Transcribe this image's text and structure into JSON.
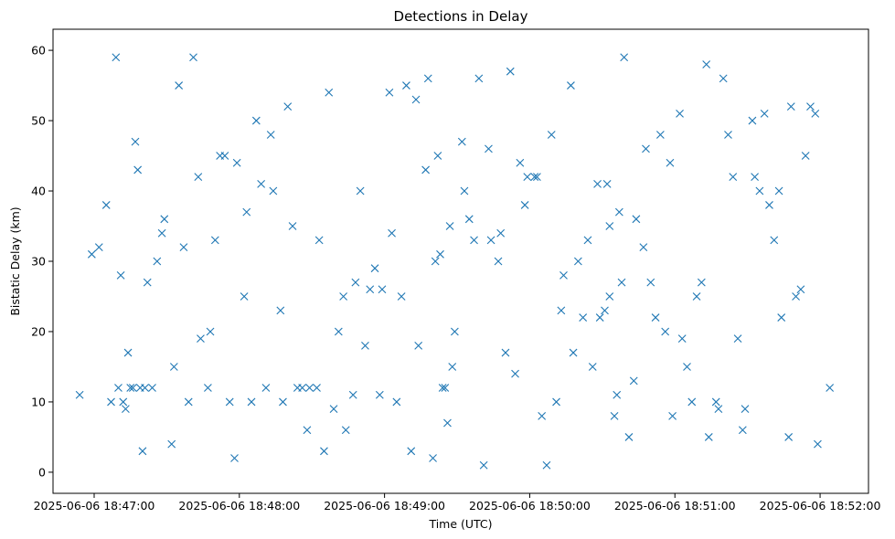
{
  "chart_data": {
    "type": "scatter",
    "title": "Detections in Delay",
    "xlabel": "Time (UTC)",
    "ylabel": "Bistatic Delay (km)",
    "marker": "x",
    "color": "#1f77b4",
    "grid": false,
    "xlim": [
      "2025-06-06 18:46:43",
      "2025-06-06 18:52:20"
    ],
    "ylim": [
      -3,
      63
    ],
    "xticks": [
      "2025-06-06 18:47:00",
      "2025-06-06 18:48:00",
      "2025-06-06 18:49:00",
      "2025-06-06 18:50:00",
      "2025-06-06 18:51:00",
      "2025-06-06 18:52:00"
    ],
    "yticks": [
      0,
      10,
      20,
      30,
      40,
      50,
      60
    ],
    "x": [
      "2025-06-06 18:46:54",
      "2025-06-06 18:47:09",
      "2025-06-06 18:47:24",
      "2025-06-06 18:47:39",
      "2025-06-06 18:47:54",
      "2025-06-06 18:48:09",
      "2025-06-06 18:48:24",
      "2025-06-06 18:48:39",
      "2025-06-06 18:48:54",
      "2025-06-06 18:49:09",
      "2025-06-06 18:49:24",
      "2025-06-06 18:49:39",
      "2025-06-06 18:49:54",
      "2025-06-06 18:50:09",
      "2025-06-06 18:50:24",
      "2025-06-06 18:50:39",
      "2025-06-06 18:50:54",
      "2025-06-06 18:51:09",
      "2025-06-06 18:51:24",
      "2025-06-06 18:51:39",
      "2025-06-06 18:51:54",
      "2025-06-06 18:52:04",
      "2025-06-06 18:47:05",
      "2025-06-06 18:47:20",
      "2025-06-06 18:47:35",
      "2025-06-06 18:47:50",
      "2025-06-06 18:48:05",
      "2025-06-06 18:48:20",
      "2025-06-06 18:48:35",
      "2025-06-06 18:48:50",
      "2025-06-06 18:49:05",
      "2025-06-06 18:49:20",
      "2025-06-06 18:49:35",
      "2025-06-06 18:49:50",
      "2025-06-06 18:50:05",
      "2025-06-06 18:50:20",
      "2025-06-06 18:50:35",
      "2025-06-06 18:50:50",
      "2025-06-06 18:51:05",
      "2025-06-06 18:51:20",
      "2025-06-06 18:51:35",
      "2025-06-06 18:51:50",
      "2025-06-06 18:46:59",
      "2025-06-06 18:47:14",
      "2025-06-06 18:47:29",
      "2025-06-06 18:47:44",
      "2025-06-06 18:47:59",
      "2025-06-06 18:48:14",
      "2025-06-06 18:48:29",
      "2025-06-06 18:48:44",
      "2025-06-06 18:48:59",
      "2025-06-06 18:49:14",
      "2025-06-06 18:49:29",
      "2025-06-06 18:49:44",
      "2025-06-06 18:49:59",
      "2025-06-06 18:50:14",
      "2025-06-06 18:50:29",
      "2025-06-06 18:50:44",
      "2025-06-06 18:50:59",
      "2025-06-06 18:51:14",
      "2025-06-06 18:51:29",
      "2025-06-06 18:51:44",
      "2025-06-06 18:51:59",
      "2025-06-06 18:47:02",
      "2025-06-06 18:47:17",
      "2025-06-06 18:47:32",
      "2025-06-06 18:47:47",
      "2025-06-06 18:48:02",
      "2025-06-06 18:48:17",
      "2025-06-06 18:48:32",
      "2025-06-06 18:48:47",
      "2025-06-06 18:49:02",
      "2025-06-06 18:49:17",
      "2025-06-06 18:49:32",
      "2025-06-06 18:49:47",
      "2025-06-06 18:50:02",
      "2025-06-06 18:50:17",
      "2025-06-06 18:50:32",
      "2025-06-06 18:50:47",
      "2025-06-06 18:51:02",
      "2025-06-06 18:51:17",
      "2025-06-06 18:51:32",
      "2025-06-06 18:51:47",
      "2025-06-06 18:47:11",
      "2025-06-06 18:47:26",
      "2025-06-06 18:47:41",
      "2025-06-06 18:47:56",
      "2025-06-06 18:48:11",
      "2025-06-06 18:48:26",
      "2025-06-06 18:48:41",
      "2025-06-06 18:48:56",
      "2025-06-06 18:49:11",
      "2025-06-06 18:49:26",
      "2025-06-06 18:49:41",
      "2025-06-06 18:49:56",
      "2025-06-06 18:50:11",
      "2025-06-06 18:50:26",
      "2025-06-06 18:50:41",
      "2025-06-06 18:50:56",
      "2025-06-06 18:51:11",
      "2025-06-06 18:51:26",
      "2025-06-06 18:51:41",
      "2025-06-06 18:51:56",
      "2025-06-06 18:47:07",
      "2025-06-06 18:47:22",
      "2025-06-06 18:47:37",
      "2025-06-06 18:47:52",
      "2025-06-06 18:48:07",
      "2025-06-06 18:48:22",
      "2025-06-06 18:48:37",
      "2025-06-06 18:48:52",
      "2025-06-06 18:49:07",
      "2025-06-06 18:49:22",
      "2025-06-06 18:49:37",
      "2025-06-06 18:49:52",
      "2025-06-06 18:50:07",
      "2025-06-06 18:50:22",
      "2025-06-06 18:50:37",
      "2025-06-06 18:50:52",
      "2025-06-06 18:51:07",
      "2025-06-06 18:51:22",
      "2025-06-06 18:51:37",
      "2025-06-06 18:51:52",
      "2025-06-06 18:47:13",
      "2025-06-06 18:47:28",
      "2025-06-06 18:47:43",
      "2025-06-06 18:47:58",
      "2025-06-06 18:48:13",
      "2025-06-06 18:48:28",
      "2025-06-06 18:48:43",
      "2025-06-06 18:48:58",
      "2025-06-06 18:49:13",
      "2025-06-06 18:49:28",
      "2025-06-06 18:49:43",
      "2025-06-06 18:49:58",
      "2025-06-06 18:50:13",
      "2025-06-06 18:50:28",
      "2025-06-06 18:50:43",
      "2025-06-06 18:50:58",
      "2025-06-06 18:51:13",
      "2025-06-06 18:51:28",
      "2025-06-06 18:51:43",
      "2025-06-06 18:51:58",
      "2025-06-06 18:47:18",
      "2025-06-06 18:47:33",
      "2025-06-06 18:47:48",
      "2025-06-06 18:48:03",
      "2025-06-06 18:48:18",
      "2025-06-06 18:48:33",
      "2025-06-06 18:48:48",
      "2025-06-06 18:49:03",
      "2025-06-06 18:49:18",
      "2025-06-06 18:49:33",
      "2025-06-06 18:49:48",
      "2025-06-06 18:50:03",
      "2025-06-06 18:50:18",
      "2025-06-06 18:50:33",
      "2025-06-06 18:50:48",
      "2025-06-06 18:51:03",
      "2025-06-06 18:51:18",
      "2025-06-06 18:51:33",
      "2025-06-06 18:51:48",
      "2025-06-06 18:47:10",
      "2025-06-06 18:47:12",
      "2025-06-06 18:47:15",
      "2025-06-06 18:47:16",
      "2025-06-06 18:47:19",
      "2025-06-06 18:47:21",
      "2025-06-06 18:49:21",
      "2025-06-06 18:49:23",
      "2025-06-06 18:49:25",
      "2025-06-06 18:49:27",
      "2025-06-06 18:50:31",
      "2025-06-06 18:50:33",
      "2025-06-06 18:50:36",
      "2025-06-06 18:50:38"
    ],
    "y": [
      11,
      59,
      12,
      10,
      45,
      41,
      12,
      9,
      26,
      55,
      12,
      56,
      14,
      48,
      33,
      59,
      48,
      25,
      42,
      38,
      45,
      12,
      38,
      3,
      55,
      33,
      10,
      52,
      3,
      40,
      10,
      2,
      36,
      17,
      8,
      30,
      8,
      27,
      15,
      56,
      40,
      25,
      31,
      17,
      36,
      19,
      44,
      40,
      12,
      6,
      26,
      18,
      20,
      33,
      42,
      28,
      22,
      36,
      8,
      5,
      9,
      22,
      4,
      32,
      47,
      4,
      12,
      25,
      23,
      12,
      11,
      54,
      43,
      47,
      30,
      42,
      55,
      41,
      32,
      51,
      10,
      50,
      5,
      28,
      30,
      59,
      10,
      12,
      12,
      20,
      29,
      3,
      7,
      1,
      44,
      10,
      15,
      5,
      20,
      27,
      19,
      33,
      52,
      10,
      27,
      32,
      45,
      50,
      35,
      54,
      18,
      25,
      45,
      33,
      57,
      1,
      22,
      37,
      22,
      10,
      48,
      51,
      26,
      9,
      34,
      42,
      2,
      48,
      6,
      25,
      11,
      53,
      15,
      46,
      38,
      23,
      41,
      13,
      44,
      58,
      6,
      40,
      51,
      43,
      15,
      20,
      37,
      10,
      33,
      27,
      34,
      56,
      40,
      34,
      42,
      17,
      25,
      46,
      19,
      9,
      42,
      52,
      12,
      10,
      12,
      12,
      12,
      12,
      30,
      31,
      12,
      35,
      23,
      35,
      11,
      27
    ]
  }
}
